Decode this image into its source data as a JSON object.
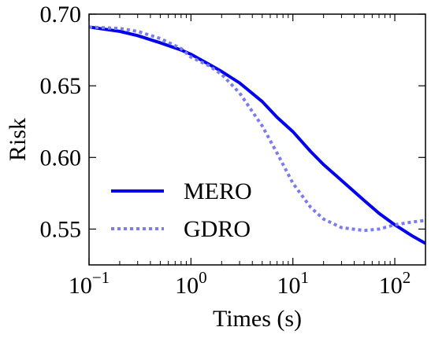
{
  "chart_data": {
    "type": "line",
    "title": "",
    "xlabel": "Times (s)",
    "ylabel": "Risk",
    "x_scale": "log",
    "xlim": [
      0.1,
      200
    ],
    "ylim": [
      0.525,
      0.7
    ],
    "x_ticks": [
      {
        "value": 0.1,
        "base": "10",
        "exp": "−1"
      },
      {
        "value": 1,
        "base": "10",
        "exp": "0"
      },
      {
        "value": 10,
        "base": "10",
        "exp": "1"
      },
      {
        "value": 100,
        "base": "10",
        "exp": "2"
      }
    ],
    "y_ticks": [
      {
        "value": 0.55,
        "label": "0.55"
      },
      {
        "value": 0.6,
        "label": "0.60"
      },
      {
        "value": 0.65,
        "label": "0.65"
      },
      {
        "value": 0.7,
        "label": "0.70"
      }
    ],
    "grid": false,
    "legend_position": "lower-left",
    "series": [
      {
        "name": "MERO",
        "color": "#0000ee",
        "style": "solid",
        "points": [
          [
            0.1,
            0.691
          ],
          [
            0.2,
            0.688
          ],
          [
            0.3,
            0.685
          ],
          [
            0.5,
            0.68
          ],
          [
            0.8,
            0.675
          ],
          [
            1,
            0.672
          ],
          [
            1.5,
            0.665
          ],
          [
            2,
            0.66
          ],
          [
            3,
            0.652
          ],
          [
            5,
            0.639
          ],
          [
            7,
            0.628
          ],
          [
            10,
            0.618
          ],
          [
            15,
            0.604
          ],
          [
            20,
            0.595
          ],
          [
            30,
            0.584
          ],
          [
            50,
            0.57
          ],
          [
            70,
            0.561
          ],
          [
            100,
            0.553
          ],
          [
            150,
            0.545
          ],
          [
            200,
            0.54
          ]
        ]
      },
      {
        "name": "GDRO",
        "color": "#7b7bf0",
        "style": "dotted",
        "points": [
          [
            0.1,
            0.691
          ],
          [
            0.2,
            0.69
          ],
          [
            0.3,
            0.688
          ],
          [
            0.5,
            0.683
          ],
          [
            0.8,
            0.676
          ],
          [
            1,
            0.67
          ],
          [
            1.5,
            0.664
          ],
          [
            2,
            0.658
          ],
          [
            3,
            0.645
          ],
          [
            5,
            0.622
          ],
          [
            7,
            0.603
          ],
          [
            10,
            0.582
          ],
          [
            15,
            0.565
          ],
          [
            20,
            0.557
          ],
          [
            30,
            0.551
          ],
          [
            50,
            0.549
          ],
          [
            70,
            0.55
          ],
          [
            100,
            0.553
          ],
          [
            150,
            0.555
          ],
          [
            200,
            0.556
          ]
        ]
      }
    ]
  }
}
